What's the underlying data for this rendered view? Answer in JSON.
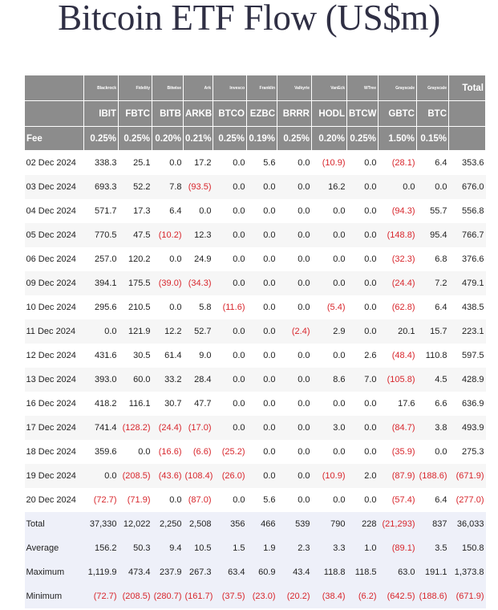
{
  "title": "Bitcoin ETF Flow (US$m)",
  "providers": [
    "Blackrock",
    "Fidelity",
    "Bitwise",
    "Ark",
    "Invesco",
    "Franklin",
    "Valkyrie",
    "VanEck",
    "WTree",
    "Grayscale",
    "Grayscale"
  ],
  "total_label": "Total",
  "tickers": [
    "IBIT",
    "FBTC",
    "BITB",
    "ARKB",
    "BTCO",
    "EZBC",
    "BRRR",
    "HODL",
    "BTCW",
    "GBTC",
    "BTC"
  ],
  "fee_label": "Fee",
  "fees": [
    "0.25%",
    "0.25%",
    "0.20%",
    "0.21%",
    "0.25%",
    "0.19%",
    "0.25%",
    "0.20%",
    "0.25%",
    "1.50%",
    "0.15%"
  ],
  "rows": [
    {
      "date": "02 Dec 2024",
      "values": [
        "338.3",
        "25.1",
        "0.0",
        "17.2",
        "0.0",
        "5.6",
        "0.0",
        "(10.9)",
        "0.0",
        "(28.1)",
        "6.4",
        "353.6"
      ]
    },
    {
      "date": "03 Dec 2024",
      "values": [
        "693.3",
        "52.2",
        "7.8",
        "(93.5)",
        "0.0",
        "0.0",
        "0.0",
        "16.2",
        "0.0",
        "0.0",
        "0.0",
        "676.0"
      ]
    },
    {
      "date": "04 Dec 2024",
      "values": [
        "571.7",
        "17.3",
        "6.4",
        "0.0",
        "0.0",
        "0.0",
        "0.0",
        "0.0",
        "0.0",
        "(94.3)",
        "55.7",
        "556.8"
      ]
    },
    {
      "date": "05 Dec 2024",
      "values": [
        "770.5",
        "47.5",
        "(10.2)",
        "12.3",
        "0.0",
        "0.0",
        "0.0",
        "0.0",
        "0.0",
        "(148.8)",
        "95.4",
        "766.7"
      ]
    },
    {
      "date": "06 Dec 2024",
      "values": [
        "257.0",
        "120.2",
        "0.0",
        "24.9",
        "0.0",
        "0.0",
        "0.0",
        "0.0",
        "0.0",
        "(32.3)",
        "6.8",
        "376.6"
      ]
    },
    {
      "date": "09 Dec 2024",
      "values": [
        "394.1",
        "175.5",
        "(39.0)",
        "(34.3)",
        "0.0",
        "0.0",
        "0.0",
        "0.0",
        "0.0",
        "(24.4)",
        "7.2",
        "479.1"
      ]
    },
    {
      "date": "10 Dec 2024",
      "values": [
        "295.6",
        "210.5",
        "0.0",
        "5.8",
        "(11.6)",
        "0.0",
        "0.0",
        "(5.4)",
        "0.0",
        "(62.8)",
        "6.4",
        "438.5"
      ]
    },
    {
      "date": "11 Dec 2024",
      "values": [
        "0.0",
        "121.9",
        "12.2",
        "52.7",
        "0.0",
        "0.0",
        "(2.4)",
        "2.9",
        "0.0",
        "20.1",
        "15.7",
        "223.1"
      ]
    },
    {
      "date": "12 Dec 2024",
      "values": [
        "431.6",
        "30.5",
        "61.4",
        "9.0",
        "0.0",
        "0.0",
        "0.0",
        "0.0",
        "2.6",
        "(48.4)",
        "110.8",
        "597.5"
      ]
    },
    {
      "date": "13 Dec 2024",
      "values": [
        "393.0",
        "60.0",
        "33.2",
        "28.4",
        "0.0",
        "0.0",
        "0.0",
        "8.6",
        "7.0",
        "(105.8)",
        "4.5",
        "428.9"
      ]
    },
    {
      "date": "16 Dec 2024",
      "values": [
        "418.2",
        "116.1",
        "30.7",
        "47.7",
        "0.0",
        "0.0",
        "0.0",
        "0.0",
        "0.0",
        "17.6",
        "6.6",
        "636.9"
      ]
    },
    {
      "date": "17 Dec 2024",
      "values": [
        "741.4",
        "(128.2)",
        "(24.4)",
        "(17.0)",
        "0.0",
        "0.0",
        "0.0",
        "3.0",
        "0.0",
        "(84.7)",
        "3.8",
        "493.9"
      ]
    },
    {
      "date": "18 Dec 2024",
      "values": [
        "359.6",
        "0.0",
        "(16.6)",
        "(6.6)",
        "(25.2)",
        "0.0",
        "0.0",
        "0.0",
        "0.0",
        "(35.9)",
        "0.0",
        "275.3"
      ]
    },
    {
      "date": "19 Dec 2024",
      "values": [
        "0.0",
        "(208.5)",
        "(43.6)",
        "(108.4)",
        "(26.0)",
        "0.0",
        "0.0",
        "(10.9)",
        "2.0",
        "(87.9)",
        "(188.6)",
        "(671.9)"
      ]
    },
    {
      "date": "20 Dec 2024",
      "values": [
        "(72.7)",
        "(71.9)",
        "0.0",
        "(87.0)",
        "0.0",
        "5.6",
        "0.0",
        "0.0",
        "0.0",
        "(57.4)",
        "6.4",
        "(277.0)"
      ]
    }
  ],
  "stats": [
    {
      "label": "Total",
      "values": [
        "37,330",
        "12,022",
        "2,250",
        "2,508",
        "356",
        "466",
        "539",
        "790",
        "228",
        "(21,293)",
        "837",
        "36,033"
      ]
    },
    {
      "label": "Average",
      "values": [
        "156.2",
        "50.3",
        "9.4",
        "10.5",
        "1.5",
        "1.9",
        "2.3",
        "3.3",
        "1.0",
        "(89.1)",
        "3.5",
        "150.8"
      ]
    },
    {
      "label": "Maximum",
      "values": [
        "1,119.9",
        "473.4",
        "237.9",
        "267.3",
        "63.4",
        "60.9",
        "43.4",
        "118.8",
        "118.5",
        "63.0",
        "191.1",
        "1,373.8"
      ]
    },
    {
      "label": "Minimum",
      "values": [
        "(72.7)",
        "(208.5)",
        "(280.7)",
        "(161.7)",
        "(37.5)",
        "(23.0)",
        "(20.2)",
        "(38.4)",
        "(6.2)",
        "(642.5)",
        "(188.6)",
        "(671.9)"
      ]
    }
  ],
  "colors": {
    "header_bg": "#8c8c8c",
    "negative": "#d8262c",
    "stats_bg": "#eef0f9",
    "title": "#2f2f44"
  }
}
